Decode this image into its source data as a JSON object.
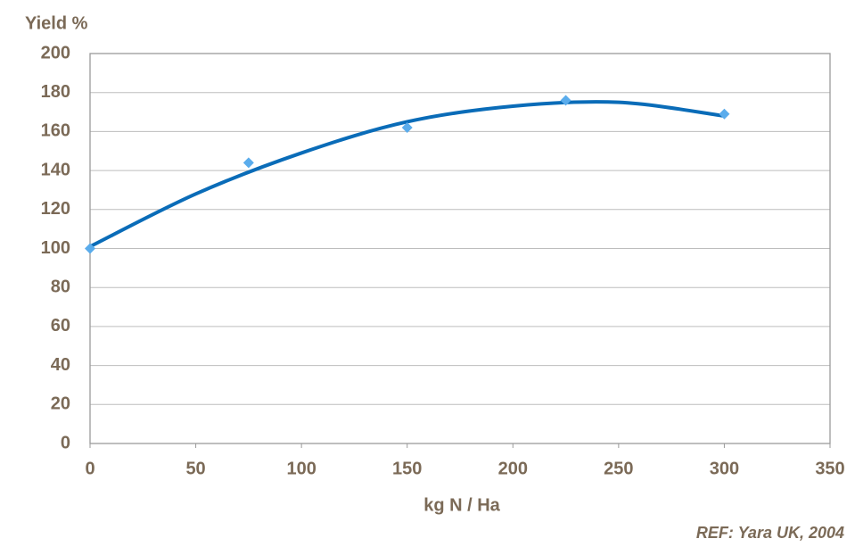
{
  "chart_data": {
    "type": "scatter",
    "title": "Yield %",
    "x_label": "kg N / Ha",
    "note": "REF: Yara UK, 2004",
    "series": [
      {
        "color": "#5aacec",
        "x": [
          0,
          75,
          150,
          225,
          300
        ],
        "values": [
          100,
          144,
          162,
          176,
          169
        ]
      }
    ],
    "trendline": {
      "color": "#0a6cb8",
      "x": [
        0,
        50,
        100,
        150,
        200,
        250,
        300
      ],
      "values": [
        101,
        128,
        149,
        165,
        173,
        175,
        168
      ]
    },
    "xlim": [
      0,
      350
    ],
    "xticks": [
      0,
      50,
      100,
      150,
      200,
      250,
      300,
      350
    ],
    "ylim": [
      0,
      200
    ],
    "yticks": [
      0,
      20,
      40,
      60,
      80,
      100,
      120,
      140,
      160,
      180,
      200
    ],
    "grid": true
  }
}
